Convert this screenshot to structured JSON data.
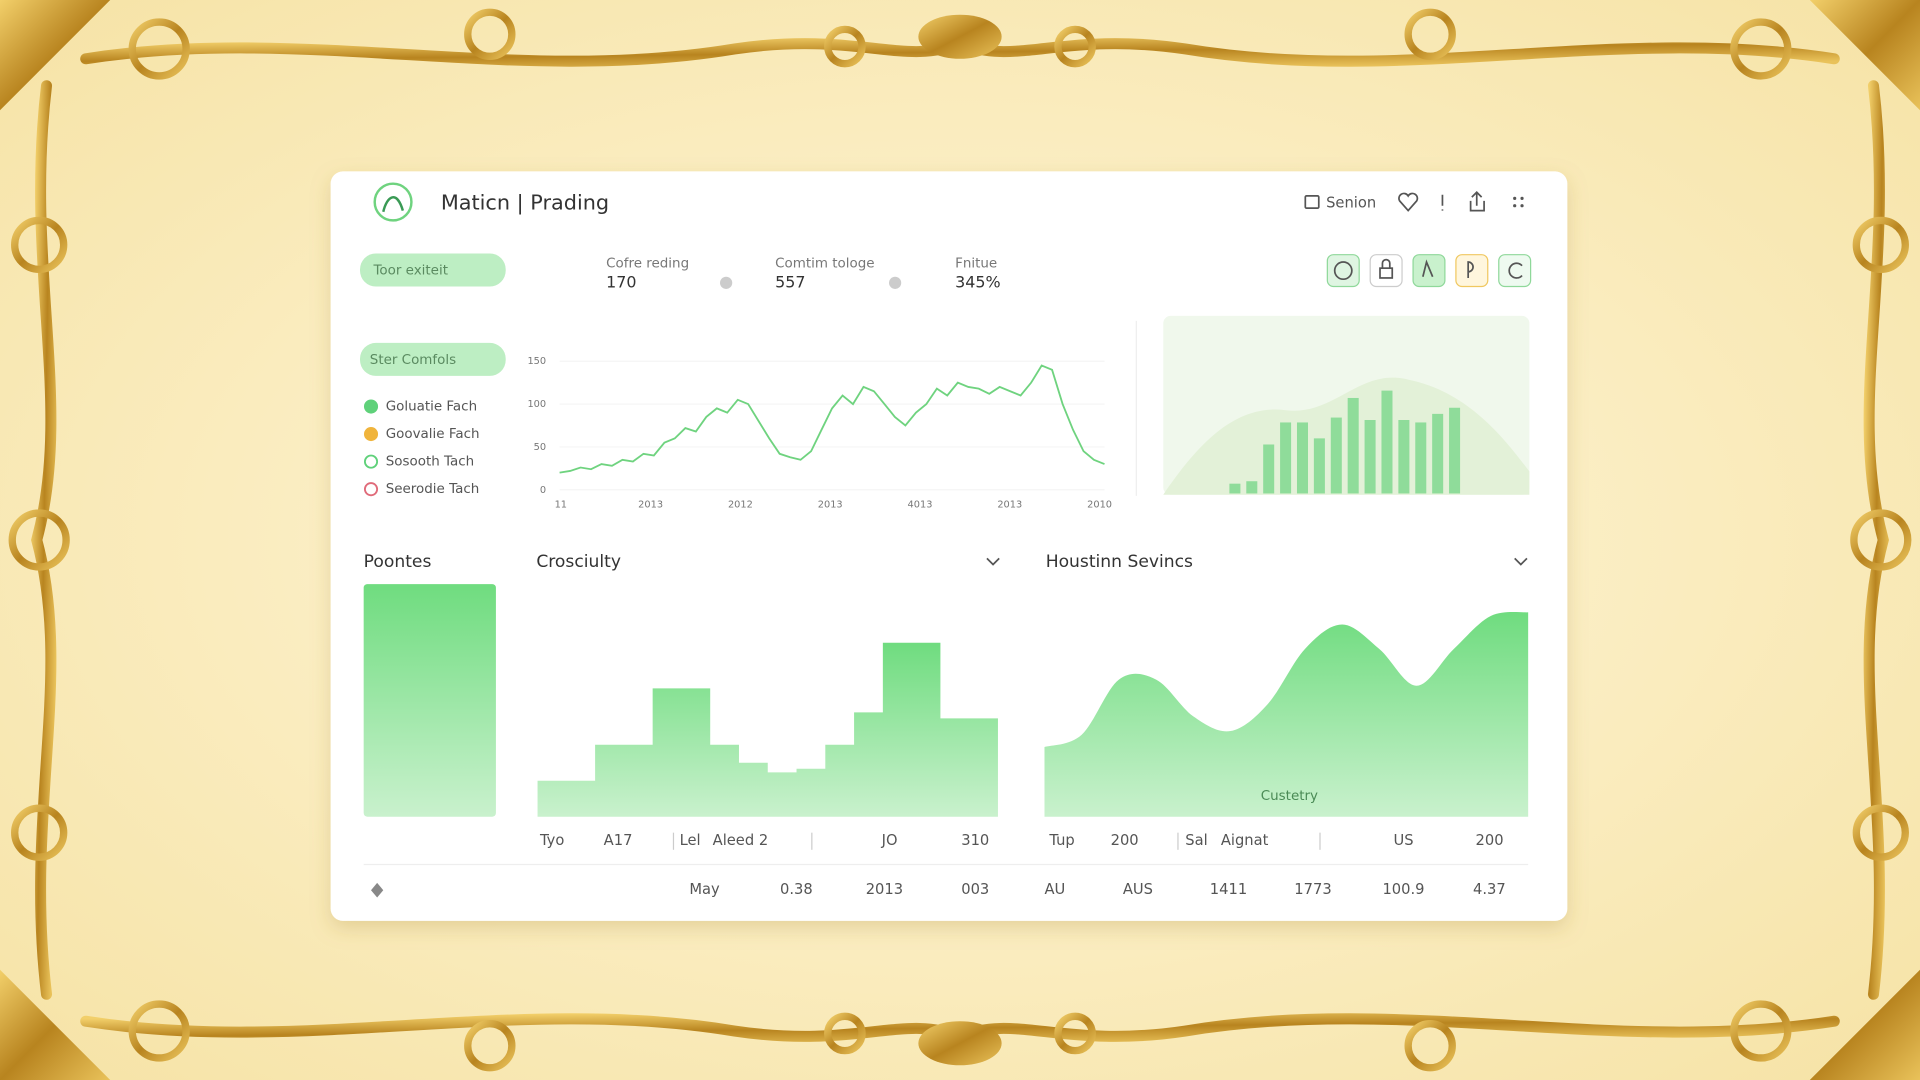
{
  "header": {
    "title": "Maticn | Prading",
    "session": "Senion"
  },
  "pills": [
    "Toor exiteit",
    "Ster Comfols"
  ],
  "stats": [
    {
      "label": "Cofre reding",
      "value": 170
    },
    {
      "label": "Comtim tologe",
      "value": 557
    },
    {
      "label": "Fnitue",
      "value": "345%"
    }
  ],
  "legend": [
    {
      "name": "Goluatie Fach",
      "color": "#5fd17a",
      "outline": false
    },
    {
      "name": "Goovalie Fach",
      "color": "#f0b43c",
      "outline": false
    },
    {
      "name": "Sosooth Tach",
      "color": "#5fd17a",
      "outline": true
    },
    {
      "name": "Seerodie Tach",
      "color": "#e06b7a",
      "outline": true
    }
  ],
  "line_chart": {
    "type": "line",
    "color": "#6fd37f",
    "ylim": [
      0,
      150
    ],
    "yticks": [
      0,
      50,
      100,
      150
    ],
    "xticks": [
      "11",
      "2013",
      "2012",
      "2013",
      "4013",
      "2013",
      "2010"
    ],
    "values": [
      20,
      22,
      26,
      24,
      30,
      28,
      35,
      33,
      42,
      40,
      55,
      60,
      72,
      68,
      85,
      95,
      90,
      105,
      100,
      80,
      60,
      42,
      38,
      35,
      45,
      70,
      95,
      110,
      100,
      120,
      115,
      100,
      85,
      75,
      90,
      100,
      118,
      110,
      125,
      120,
      118,
      112,
      120,
      115,
      110,
      125,
      145,
      140,
      100,
      70,
      45,
      35,
      30
    ]
  },
  "bar_chart": {
    "type": "bar",
    "color": "#8fdc9a",
    "ylim": [
      0,
      100
    ],
    "values": [
      8,
      10,
      40,
      58,
      58,
      45,
      62,
      78,
      60,
      84,
      60,
      58,
      65,
      70
    ]
  },
  "panels": [
    {
      "title": "Poontes",
      "type": "bar",
      "ylim": [
        0,
        100
      ],
      "values": [
        100
      ]
    },
    {
      "title": "Crosciulty",
      "type": "step",
      "ylim": [
        0,
        150
      ],
      "values": [
        30,
        30,
        60,
        60,
        107,
        107,
        60,
        45,
        37,
        40,
        60,
        87,
        145,
        145,
        82,
        82
      ]
    },
    {
      "title": "Houstinn Sevincs",
      "type": "area",
      "ylim": [
        0,
        170
      ],
      "label": "Custetry",
      "values": [
        57,
        67,
        112,
        112,
        82,
        70,
        92,
        137,
        157,
        137,
        107,
        137,
        164,
        167
      ]
    }
  ],
  "rows": [
    [
      "Tyo",
      "A17",
      "Lel",
      "Aleed 2",
      "JO",
      "310",
      "Tup",
      "200",
      "Sal",
      "Aignat",
      "US",
      "200"
    ],
    [
      "May",
      "0.38",
      "2013",
      "003",
      "AU",
      "AUS",
      "1411",
      "1773",
      "100.9",
      "4.37"
    ]
  ]
}
